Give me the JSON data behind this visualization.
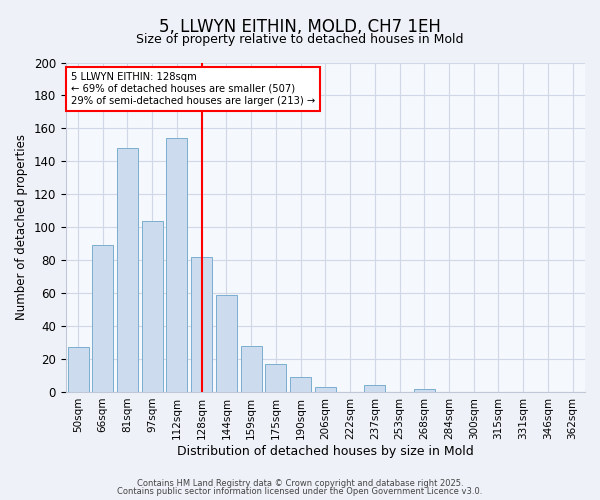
{
  "title": "5, LLWYN EITHIN, MOLD, CH7 1EH",
  "subtitle": "Size of property relative to detached houses in Mold",
  "xlabel": "Distribution of detached houses by size in Mold",
  "ylabel": "Number of detached properties",
  "bar_labels": [
    "50sqm",
    "66sqm",
    "81sqm",
    "97sqm",
    "112sqm",
    "128sqm",
    "144sqm",
    "159sqm",
    "175sqm",
    "190sqm",
    "206sqm",
    "222sqm",
    "237sqm",
    "253sqm",
    "268sqm",
    "284sqm",
    "300sqm",
    "315sqm",
    "331sqm",
    "346sqm",
    "362sqm"
  ],
  "bar_values": [
    27,
    89,
    148,
    104,
    154,
    82,
    59,
    28,
    17,
    9,
    3,
    0,
    4,
    0,
    2,
    0,
    0,
    0,
    0,
    0,
    0
  ],
  "bar_color": "#ccdcee",
  "bar_edge_color": "#7aaed0",
  "red_line_index": 5,
  "annotation_line1": "5 LLWYN EITHIN: 128sqm",
  "annotation_line2": "← 69% of detached houses are smaller (507)",
  "annotation_line3": "29% of semi-detached houses are larger (213) →",
  "annotation_box_color": "white",
  "annotation_box_edge_color": "red",
  "ylim": [
    0,
    200
  ],
  "yticks": [
    0,
    20,
    40,
    60,
    80,
    100,
    120,
    140,
    160,
    180,
    200
  ],
  "footer_line1": "Contains HM Land Registry data © Crown copyright and database right 2025.",
  "footer_line2": "Contains public sector information licensed under the Open Government Licence v3.0.",
  "bg_color": "#eef2f8",
  "plot_bg_color": "#f5f8fc",
  "grid_color": "#d0d8e8"
}
